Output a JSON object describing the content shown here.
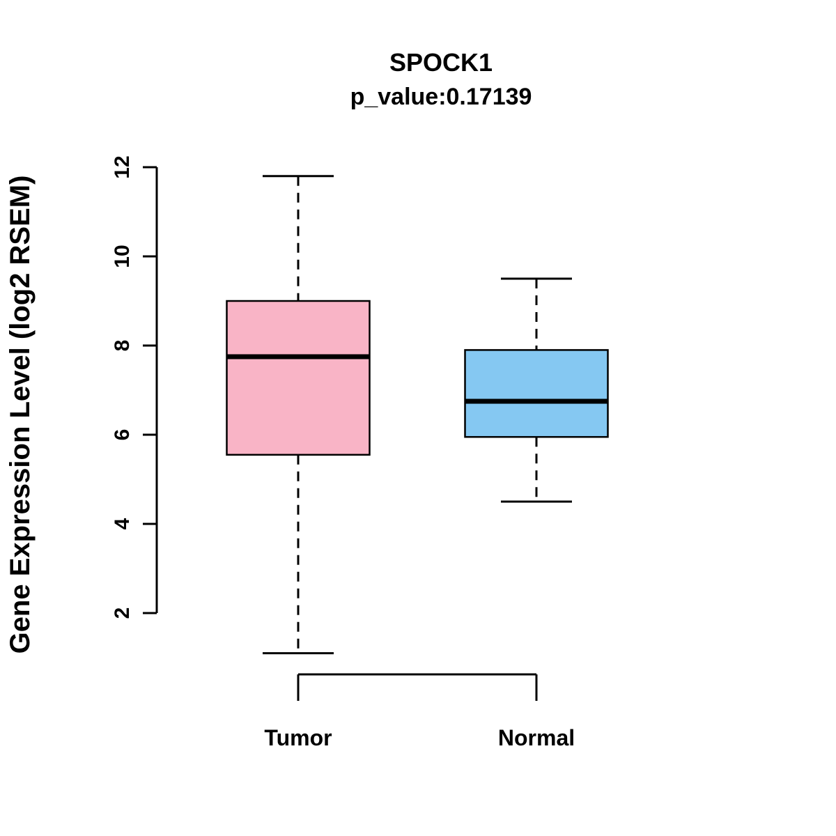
{
  "chart_data": {
    "type": "boxplot",
    "title": "SPOCK1",
    "subtitle": "p_value:0.17139",
    "ylabel": "Gene Expression Level (log2 RSEM)",
    "ylim": [
      2,
      12
    ],
    "yticks": [
      2,
      4,
      6,
      8,
      10,
      12
    ],
    "categories": [
      "Tumor",
      "Normal"
    ],
    "series": [
      {
        "name": "Tumor",
        "color": "#F9B4C6",
        "whisker_low": 1.1,
        "q1": 5.55,
        "median": 7.75,
        "q3": 9.0,
        "whisker_high": 11.8
      },
      {
        "name": "Normal",
        "color": "#85C8F2",
        "whisker_low": 4.5,
        "q1": 5.95,
        "median": 6.75,
        "q3": 7.9,
        "whisker_high": 9.5
      }
    ],
    "legend": "none",
    "grid": false,
    "box_border_color": "#000000",
    "median_color": "#000000"
  }
}
